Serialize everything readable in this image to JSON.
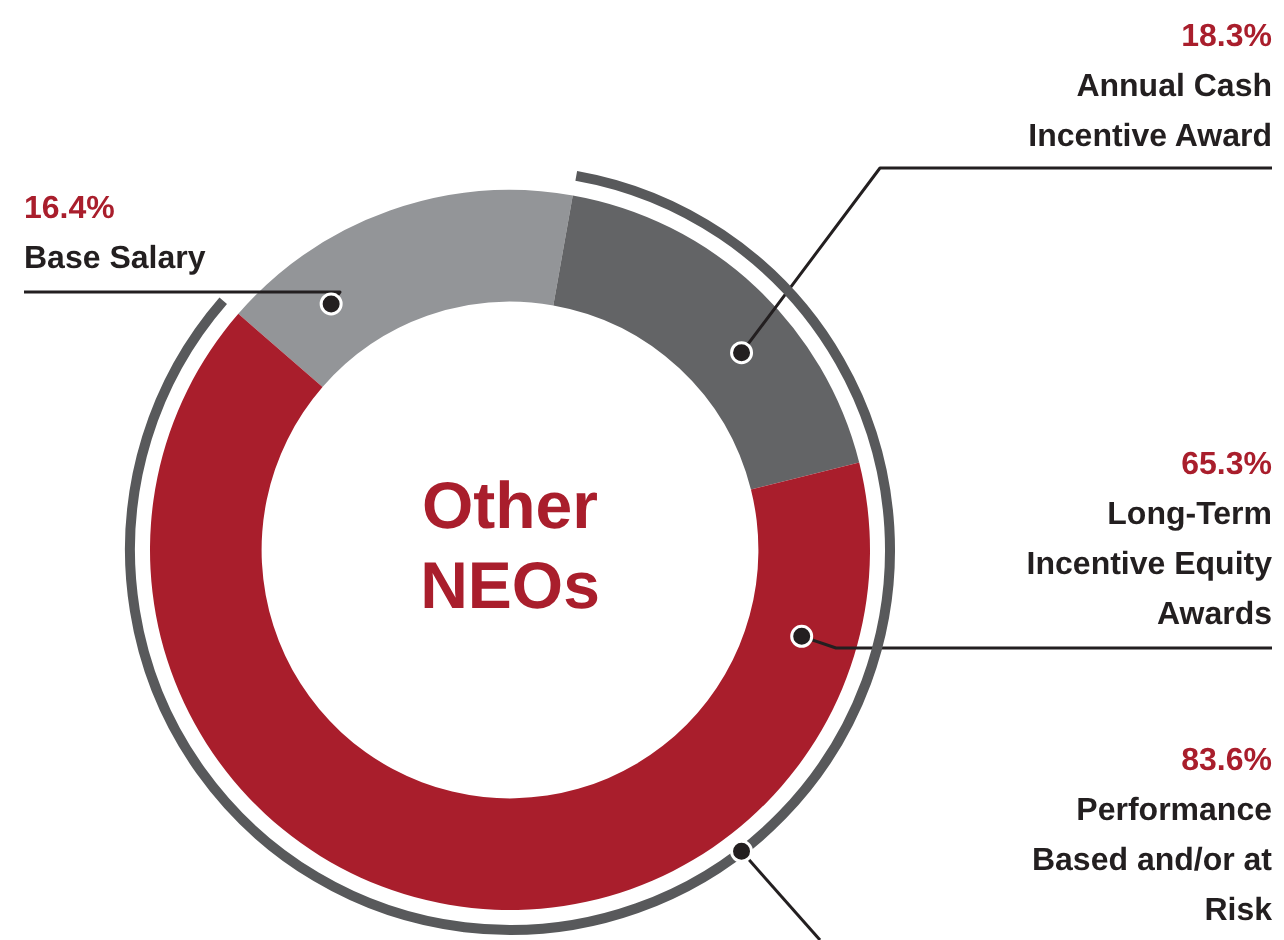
{
  "chart_data": {
    "type": "donut",
    "title": "Other NEOs",
    "categories": [
      "Base Salary",
      "Annual Cash Incentive Award",
      "Long-Term Incentive Equity Awards"
    ],
    "series": [
      {
        "values": [
          16.4,
          18.3,
          65.3
        ],
        "colors": [
          "#939598",
          "#636466",
          "#a91e2c"
        ],
        "value_labels": [
          "16.4%",
          "18.3%",
          "65.3%"
        ]
      }
    ],
    "annotations": [
      "83.6%",
      "Performance Based and/or at Risk"
    ],
    "legend": false
  }
}
